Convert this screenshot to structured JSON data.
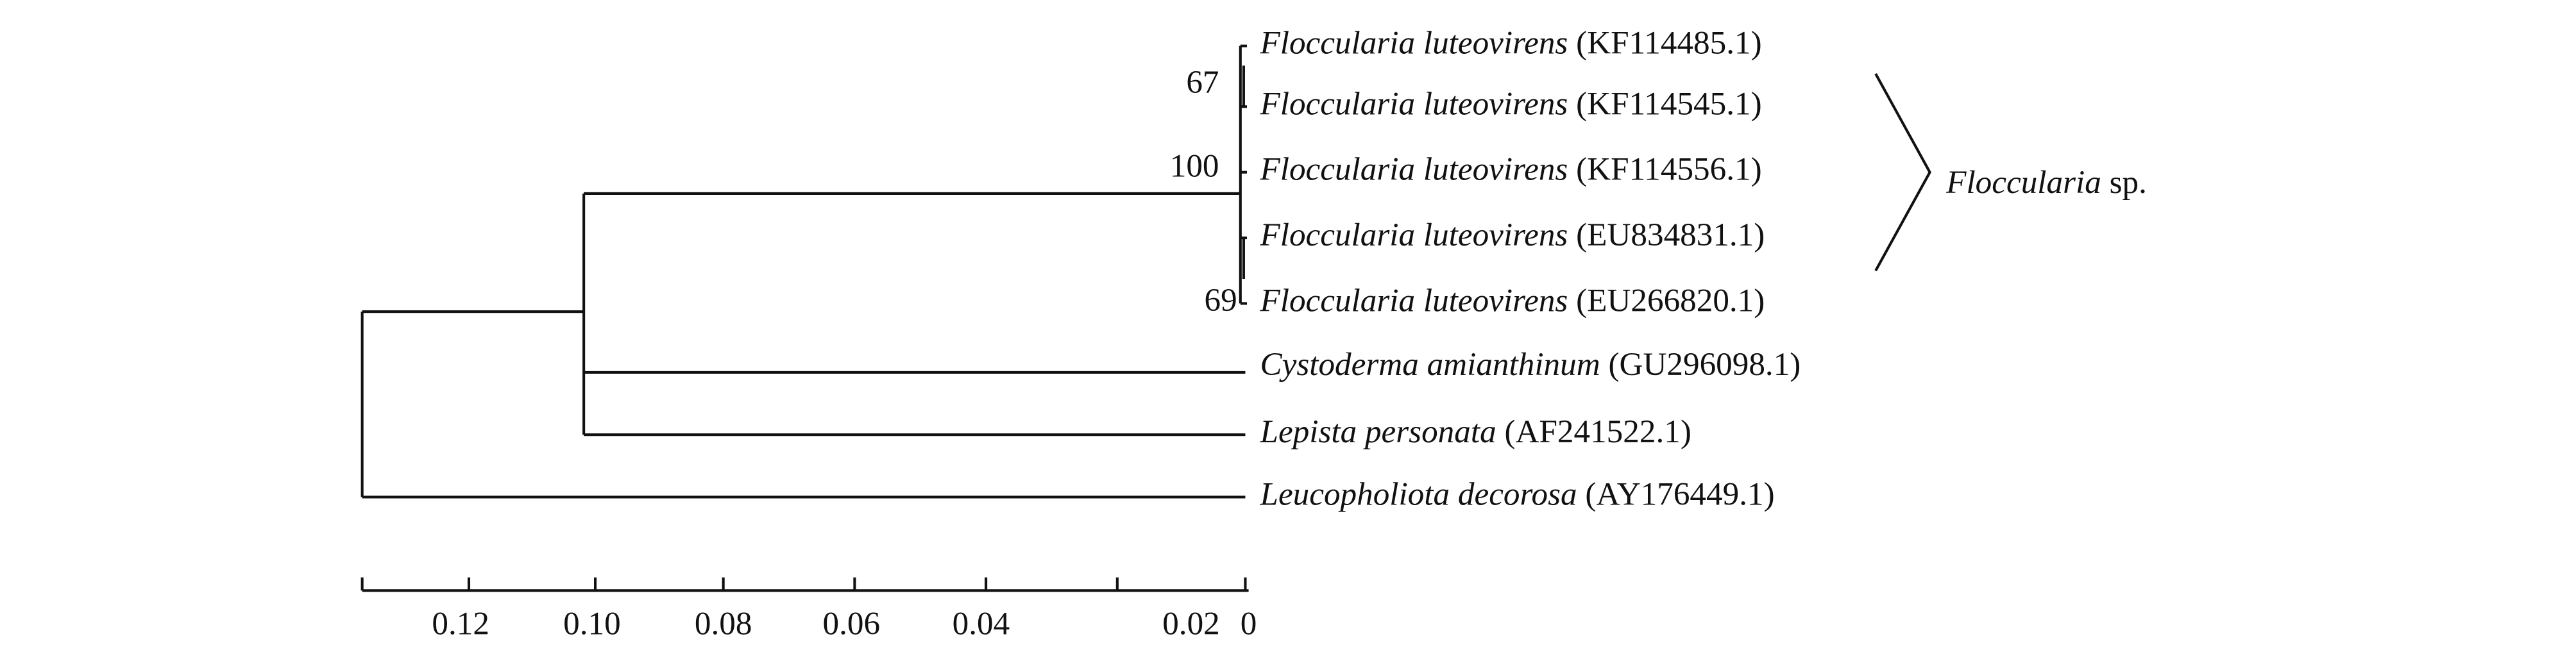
{
  "tree": {
    "leaves": [
      {
        "name": "Floccularia luteovirens",
        "accession": "(KF114485.1)"
      },
      {
        "name": "Floccularia luteovirens",
        "accession": "(KF114545.1)"
      },
      {
        "name": "Floccularia luteovirens",
        "accession": "(KF114556.1)"
      },
      {
        "name": "Floccularia luteovirens",
        "accession": "(EU834831.1)"
      },
      {
        "name": "Floccularia luteovirens",
        "accession": "(EU266820.1)"
      },
      {
        "name": "Cystoderma amianthinum",
        "accession": "(GU296098.1)"
      },
      {
        "name": "Lepista personata",
        "accession": "(AF241522.1)"
      },
      {
        "name": "Leucopholiota decorosa",
        "accession": "(AY176449.1)"
      }
    ],
    "bootstrap": [
      "67",
      "100",
      "69"
    ],
    "clade_label": {
      "genus": "Floccularia",
      "rank": "sp."
    },
    "scale_ticks": [
      "0.12",
      "0.10",
      "0.08",
      "0.06",
      "0.04",
      "0.02",
      "0"
    ]
  }
}
